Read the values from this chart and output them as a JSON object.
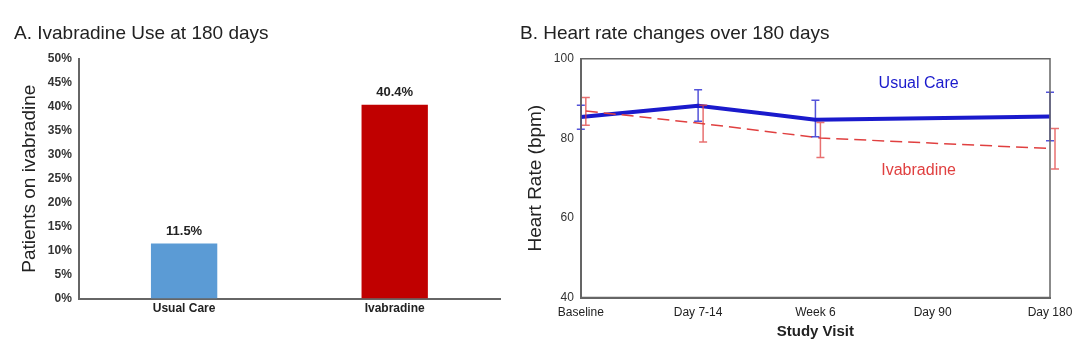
{
  "chart_data": [
    {
      "type": "bar",
      "title": "A. Ivabradine Use at 180 days",
      "ylabel": "Patients on ivabradine",
      "categories": [
        "Usual Care",
        "Ivabradine"
      ],
      "values": [
        11.5,
        40.4
      ],
      "colors": [
        "#5b9bd5",
        "#c00000"
      ],
      "value_labels": [
        "11.5%",
        "40.4%"
      ],
      "ylim": [
        0,
        50
      ],
      "yticks": [
        {
          "value": 0,
          "label": "0%"
        },
        {
          "value": 5,
          "label": "5%"
        },
        {
          "value": 10,
          "label": "10%"
        },
        {
          "value": 15,
          "label": "15%"
        },
        {
          "value": 20,
          "label": "20%"
        },
        {
          "value": 25,
          "label": "25%"
        },
        {
          "value": 30,
          "label": "30%"
        },
        {
          "value": 35,
          "label": "35%"
        },
        {
          "value": 40,
          "label": "40%"
        },
        {
          "value": 45,
          "label": "45%"
        },
        {
          "value": 50,
          "label": "50%"
        }
      ],
      "grid": false,
      "legend": false
    },
    {
      "type": "line",
      "title": "B. Heart rate changes over 180 days",
      "xlabel": "Study Visit",
      "ylabel": "Heart Rate (bpm)",
      "categories": [
        "Baseline",
        "Day 7-14",
        "Week 6",
        "Day 90",
        "Day 180"
      ],
      "series": [
        {
          "name": "Usual Care",
          "color": "#1a1acc",
          "line_style": "solid",
          "values": [
            85.4,
            88.2,
            84.7,
            null,
            85.5
          ],
          "errors": [
            [
              82.3,
              88.3
            ],
            [
              84.3,
              92.2
            ],
            [
              80.4,
              89.6
            ],
            null,
            [
              79.4,
              91.6
            ]
          ]
        },
        {
          "name": "Ivabradine",
          "color": "#e04040",
          "line_style": "dashed",
          "values": [
            86.9,
            83.7,
            80.1,
            null,
            77.4
          ],
          "errors": [
            [
              83.3,
              90.3
            ],
            [
              79.1,
              88.3
            ],
            [
              75.2,
              84.0
            ],
            null,
            [
              72.3,
              82.5
            ]
          ]
        }
      ],
      "ylim": [
        40,
        100
      ],
      "yticks": [
        40,
        60,
        80,
        100
      ],
      "grid": false,
      "legend": false,
      "marker": "none"
    }
  ]
}
